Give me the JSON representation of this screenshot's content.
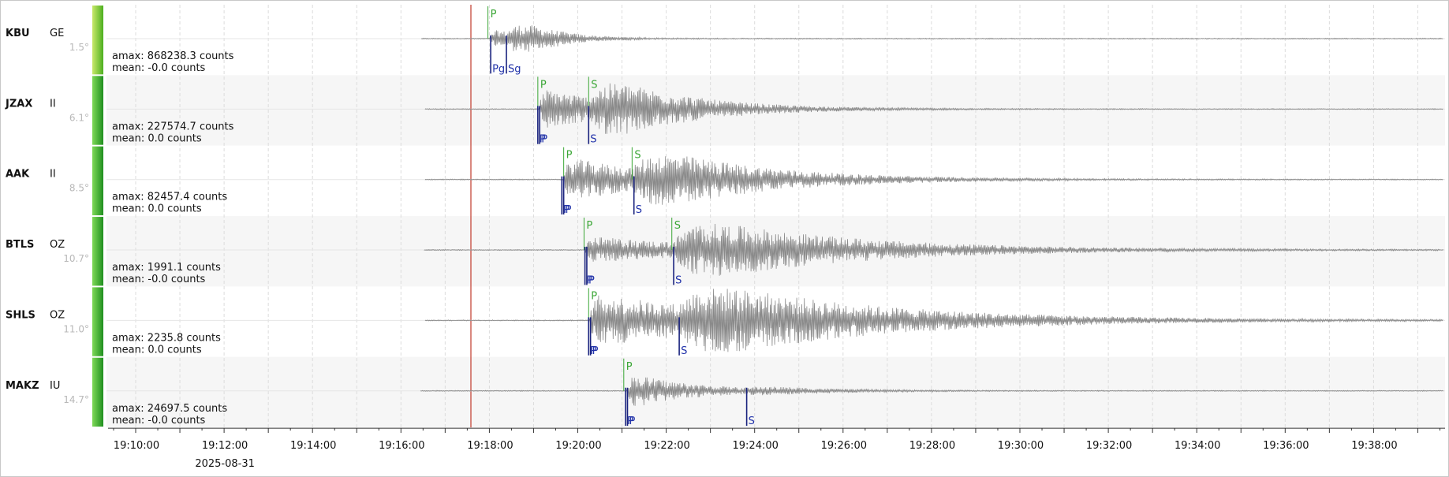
{
  "stations": [
    {
      "code": "KBU",
      "network": "GE",
      "distance": "1.5°",
      "amax": "amax: 868238.3 counts",
      "mean": "mean: -0.0 counts",
      "picks": {
        "green": [
          "P"
        ],
        "blue": [
          "Pg",
          "Sg"
        ]
      }
    },
    {
      "code": "JZAX",
      "network": "II",
      "distance": "6.1°",
      "amax": "amax: 227574.7 counts",
      "mean": "mean: 0.0 counts",
      "picks": {
        "green": [
          "P",
          "S"
        ],
        "blue": [
          "P",
          "P",
          "S"
        ]
      }
    },
    {
      "code": "AAK",
      "network": "II",
      "distance": "8.5°",
      "amax": "amax: 82457.4 counts",
      "mean": "mean: 0.0 counts",
      "picks": {
        "green": [
          "P",
          "S"
        ],
        "blue": [
          "P",
          "P",
          "S"
        ]
      }
    },
    {
      "code": "BTLS",
      "network": "OZ",
      "distance": "10.7°",
      "amax": "amax: 1991.1 counts",
      "mean": "mean: -0.0 counts",
      "picks": {
        "green": [
          "P",
          "S"
        ],
        "blue": [
          "P",
          "P",
          "S"
        ]
      }
    },
    {
      "code": "SHLS",
      "network": "OZ",
      "distance": "11.0°",
      "amax": "amax: 2235.8 counts",
      "mean": "mean: 0.0 counts",
      "picks": {
        "green": [
          "P"
        ],
        "blue": [
          "P",
          "P",
          "S"
        ]
      }
    },
    {
      "code": "MAKZ",
      "network": "IU",
      "distance": "14.7°",
      "amax": "amax: 24697.5 counts",
      "mean": "mean: -0.0 counts",
      "picks": {
        "green": [
          "P"
        ],
        "blue": [
          "P",
          "P",
          "S"
        ]
      }
    }
  ],
  "time_axis": {
    "ticks": [
      "19:10:00",
      "19:12:00",
      "19:14:00",
      "19:16:00",
      "19:18:00",
      "19:20:00",
      "19:22:00",
      "19:24:00",
      "19:26:00",
      "19:28:00",
      "19:30:00",
      "19:32:00",
      "19:34:00",
      "19:36:00",
      "19:38:00"
    ],
    "date": "2025-08-31"
  }
}
